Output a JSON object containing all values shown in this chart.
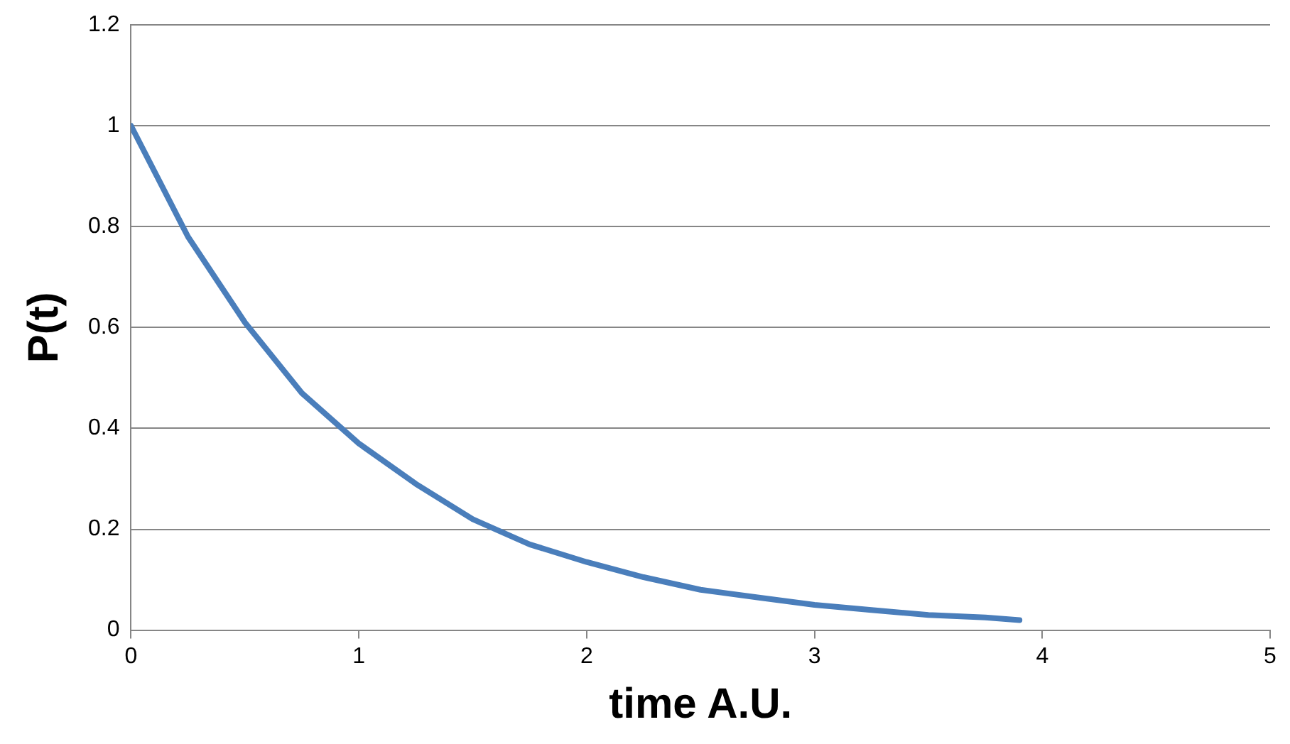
{
  "chart_data": {
    "type": "line",
    "xlabel": "time A.U.",
    "ylabel": "P(t)",
    "x": [
      0,
      0.25,
      0.5,
      0.75,
      1,
      1.25,
      1.5,
      1.75,
      2,
      2.25,
      2.5,
      2.75,
      3,
      3.25,
      3.5,
      3.75,
      3.9
    ],
    "series": [
      {
        "color": "#4a7ebb",
        "values": [
          1,
          0.78,
          0.61,
          0.47,
          0.37,
          0.29,
          0.22,
          0.17,
          0.135,
          0.105,
          0.08,
          0.065,
          0.05,
          0.04,
          0.03,
          0.025,
          0.02
        ]
      }
    ],
    "xlim": [
      0,
      5
    ],
    "xticks": [
      0,
      1,
      2,
      3,
      4,
      5
    ],
    "ylim": [
      0,
      1.2
    ],
    "yticks": [
      0,
      0.2,
      0.4,
      0.6,
      0.8,
      1,
      1.2
    ],
    "grid": "y",
    "legend": false,
    "marker": "none",
    "line_style": "solid"
  }
}
